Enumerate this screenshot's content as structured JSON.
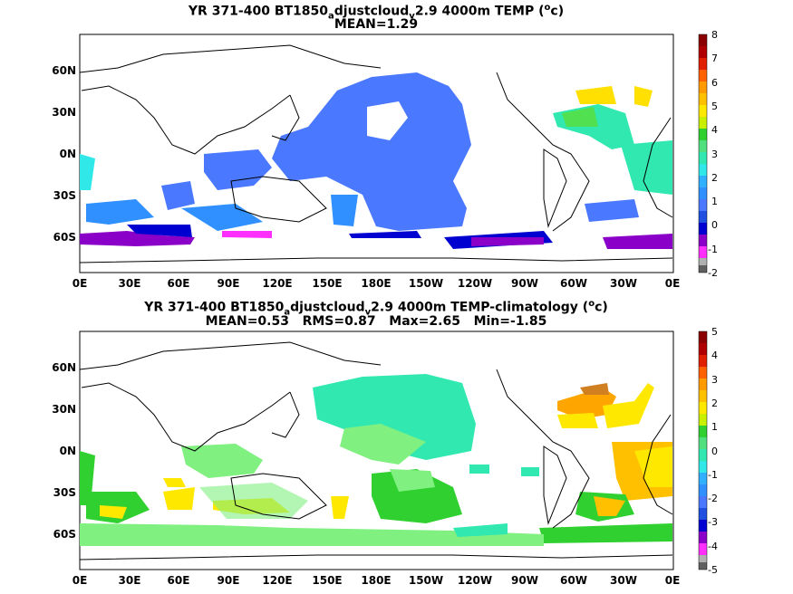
{
  "panel1": {
    "title_main": "YR 371-400 BT1850",
    "title_sub": "a",
    "title_mid": "djustcloud",
    "title_sub2": "v",
    "title_rest": "2.9 4000m TEMP (",
    "title_sup": "o",
    "title_end": "c)",
    "subtitle": "MEAN=1.29",
    "colorbar_labels": [
      "8",
      "7",
      "6",
      "5",
      "4",
      "3",
      "2",
      "1",
      "0",
      "-1",
      "-2"
    ],
    "colorbar_colors": [
      "#8b0000",
      "#cc2200",
      "#ff6a00",
      "#ffa500",
      "#ffe000",
      "#50e050",
      "#30e8b0",
      "#30b0ff",
      "#4a78ff",
      "#0000d0",
      "#a000c0",
      "#ff30ff",
      "#909090",
      "#606060"
    ]
  },
  "panel2": {
    "title_main": "YR 371-400 BT1850",
    "title_sub": "a",
    "title_mid": "djustcloud",
    "title_sub2": "v",
    "title_rest": "2.9 4000m TEMP-climatology (",
    "title_sup": "o",
    "title_end": "c)",
    "subtitle": "MEAN=0.53   RMS=0.87   Max=2.65   Min=-1.85",
    "colorbar_labels": [
      "5",
      "4",
      "3",
      "2",
      "1",
      "0",
      "-1",
      "-2",
      "-3",
      "-4",
      "-5"
    ]
  },
  "axes": {
    "x_ticks": [
      "0E",
      "30E",
      "60E",
      "90E",
      "120E",
      "150E",
      "180E",
      "150W",
      "120W",
      "90W",
      "60W",
      "30W",
      "0E"
    ],
    "y_ticks": [
      "60N",
      "30N",
      "0N",
      "30S",
      "60S"
    ]
  }
}
